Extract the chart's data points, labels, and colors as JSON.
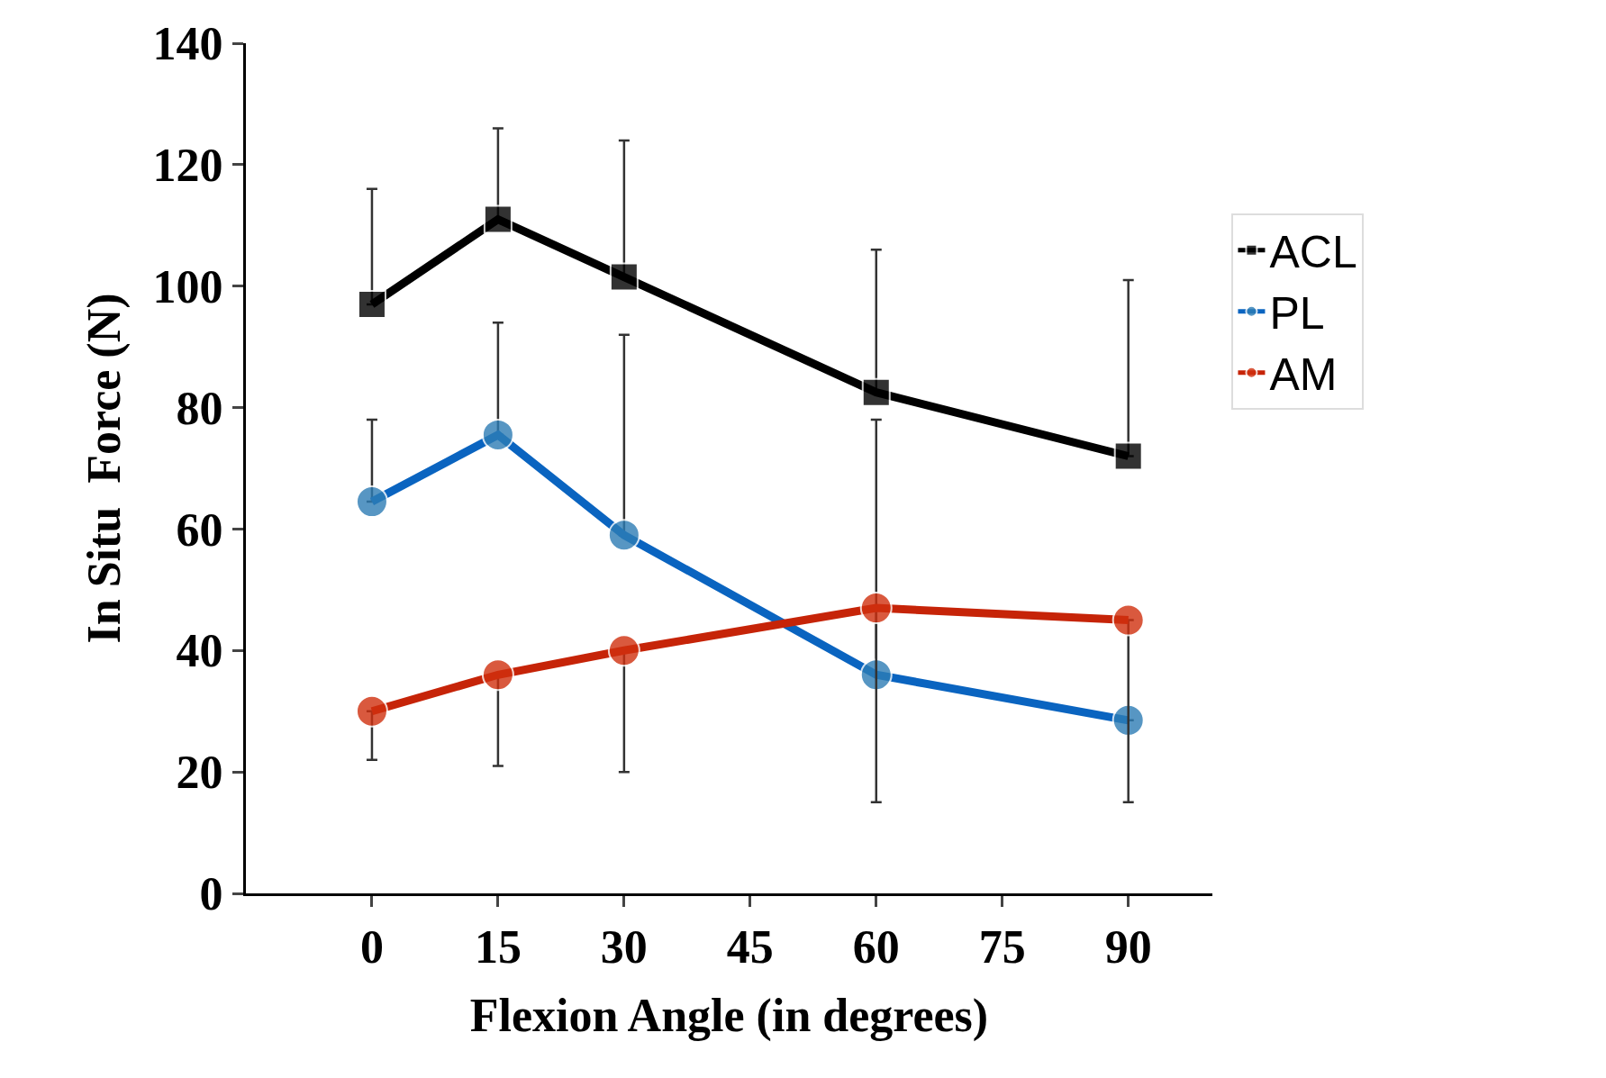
{
  "chart_data": {
    "type": "line",
    "xlabel": "Flexion Angle (in degrees)",
    "ylabel": "In Situ  Force (N)",
    "x": [
      0,
      15,
      30,
      60,
      90
    ],
    "xlim": [
      -15,
      100
    ],
    "xticks": [
      0,
      15,
      30,
      45,
      60,
      75,
      90
    ],
    "ylim": [
      0,
      140
    ],
    "yticks": [
      0,
      20,
      40,
      60,
      80,
      100,
      120,
      140
    ],
    "legend": "right",
    "series": [
      {
        "name": "ACL",
        "color": "#000000",
        "marker": "square",
        "values": [
          97,
          111,
          101.5,
          82.5,
          72
        ],
        "errors": [
          [
            97,
            116
          ],
          [
            111,
            126
          ],
          [
            101.5,
            124
          ],
          [
            82.5,
            106
          ],
          [
            72,
            101
          ]
        ]
      },
      {
        "name": "PL",
        "color": "#0a64c0",
        "colors": [
          "#2e7db5",
          "#2e7db5",
          "#2e7db5",
          "#2e7db5",
          "#2e7db5"
        ],
        "marker": "circle",
        "values": [
          64.5,
          75.5,
          59,
          36,
          28.5
        ],
        "errors": [
          [
            64.5,
            78
          ],
          [
            75.5,
            94
          ],
          [
            59,
            92
          ],
          [
            36,
            78
          ],
          null
        ]
      },
      {
        "name": "AM",
        "color": "#c62408",
        "colors": [
          "#d0300f",
          "#d0300f",
          "#d0300f",
          "#d0300f",
          "#d0300f"
        ],
        "marker": "circle",
        "values": [
          30,
          36,
          40,
          47,
          45
        ],
        "errors": [
          [
            22,
            30
          ],
          [
            21,
            36
          ],
          [
            20,
            40
          ],
          [
            15,
            47
          ],
          [
            15,
            45
          ]
        ]
      }
    ]
  }
}
